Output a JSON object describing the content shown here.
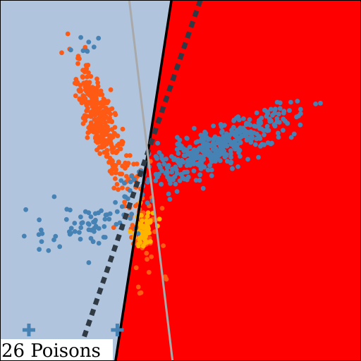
{
  "chart_data": {
    "type": "scatter",
    "title": "",
    "xlabel": "",
    "ylabel": "",
    "xlim": [
      0,
      100
    ],
    "ylim": [
      0,
      100
    ],
    "grid": false,
    "regions": {
      "left_color": "#b0c4de",
      "right_color": "#ff0000",
      "boundary": [
        [
          47.5,
          100
        ],
        [
          32,
          0
        ]
      ]
    },
    "lines": [
      {
        "style": "solid",
        "color": "#000000",
        "points": [
          [
            47.5,
            100
          ],
          [
            32,
            0
          ]
        ]
      },
      {
        "style": "dotted",
        "color": "#2f3a45",
        "points": [
          [
            55.5,
            100
          ],
          [
            21,
            0
          ]
        ]
      },
      {
        "style": "solid-thin",
        "color": "#a9a9a9",
        "points": [
          [
            35.8,
            100
          ],
          [
            47.8,
            0
          ]
        ]
      }
    ],
    "series": [
      {
        "color": "#ff5a14",
        "clusters": [
          {
            "cx": 27.5,
            "cy": 67,
            "sx": 3.2,
            "sy": 7.5,
            "rho": -0.78,
            "n": 330
          },
          {
            "cx": 38.5,
            "cy": 40,
            "sx": 2.8,
            "sy": 8.5,
            "rho": -0.35,
            "n": 80
          }
        ]
      },
      {
        "color": "#ffb400",
        "clusters": [
          {
            "cx": 39.5,
            "cy": 35.8,
            "sx": 1.6,
            "sy": 2.8,
            "rho": 0.1,
            "n": 60
          }
        ]
      },
      {
        "color": "#4682b4",
        "clusters": [
          {
            "cx": 60,
            "cy": 59,
            "sx": 11,
            "sy": 5.5,
            "rho": 0.85,
            "n": 420
          },
          {
            "cx": 24,
            "cy": 38,
            "sx": 8,
            "sy": 3.5,
            "rho": 0.4,
            "n": 70
          },
          {
            "cx": 25,
            "cy": 88,
            "sx": 2.5,
            "sy": 2.2,
            "rho": 0,
            "n": 8
          }
        ]
      }
    ],
    "poison_markers": {
      "color": "#4682b4",
      "symbol": "+",
      "points": [
        [
          8,
          8.6
        ],
        [
          32.5,
          8.6
        ]
      ]
    },
    "annotation": "26 Poisons"
  }
}
